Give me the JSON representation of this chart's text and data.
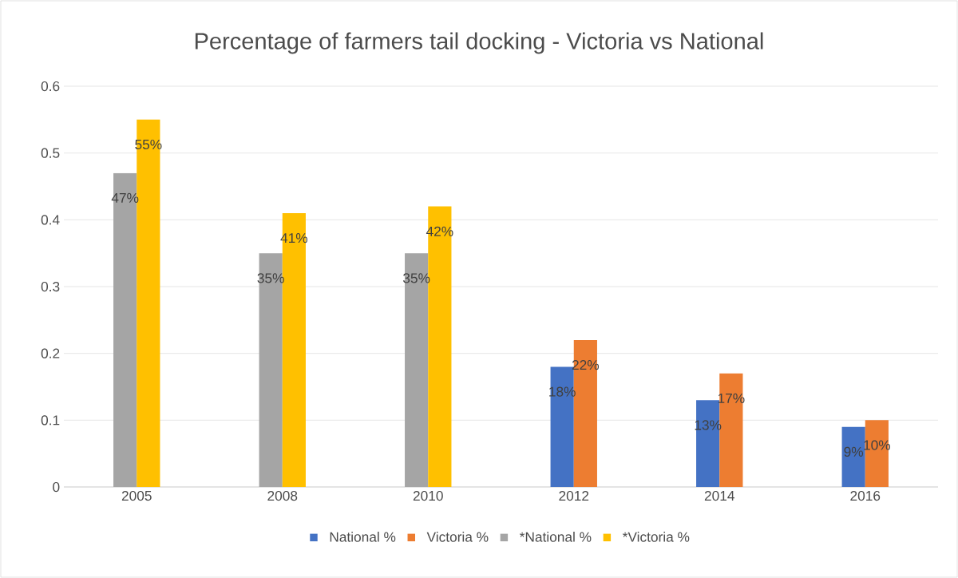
{
  "chart_data": {
    "type": "bar",
    "title": "Percentage of farmers tail docking - Victoria vs National",
    "categories": [
      "2005",
      "2008",
      "2010",
      "2012",
      "2014",
      "2016"
    ],
    "series": [
      {
        "name": "National %",
        "color": "#4472c4",
        "values": [
          null,
          null,
          null,
          0.18,
          0.13,
          0.09
        ],
        "value_labels": [
          null,
          null,
          null,
          "18%",
          "13%",
          "9%"
        ]
      },
      {
        "name": "Victoria %",
        "color": "#ed7d31",
        "values": [
          null,
          null,
          null,
          0.22,
          0.17,
          0.1
        ],
        "value_labels": [
          null,
          null,
          null,
          "22%",
          "17%",
          "10%"
        ]
      },
      {
        "name": "*National %",
        "color": "#a5a5a5",
        "values": [
          0.47,
          0.35,
          0.35,
          null,
          null,
          null
        ],
        "value_labels": [
          "47%",
          "35%",
          "35%",
          null,
          null,
          null
        ]
      },
      {
        "name": "*Victoria %",
        "color": "#ffc000",
        "values": [
          0.55,
          0.41,
          0.42,
          null,
          null,
          null
        ],
        "value_labels": [
          "55%",
          "41%",
          "42%",
          null,
          null,
          null
        ]
      }
    ],
    "ylim": [
      0,
      0.6
    ],
    "yticks": [
      0,
      0.1,
      0.2,
      0.3,
      0.4,
      0.5,
      0.6
    ],
    "grid": "y",
    "legend": "bottom"
  }
}
